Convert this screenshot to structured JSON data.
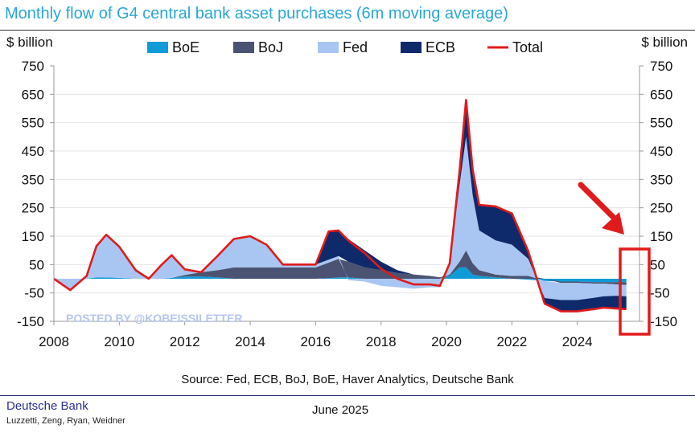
{
  "header": {
    "title": "Monthly flow of G4 central bank asset purchases (6m moving average)"
  },
  "footer": {
    "source": "Source: Fed, ECB, BoJ, BoE, Haver Analytics, Deutsche Bank",
    "brand": "Deutsche Bank",
    "authors": "Luzzetti, Zeng, Ryan, Weidner",
    "date": "June 2025"
  },
  "watermark": "POSTED BY @KOBEISSILETTER",
  "colors": {
    "BoE": "#0f9bd7",
    "BoJ": "#4a5472",
    "Fed": "#a9c6f2",
    "ECB": "#0e2a6b",
    "Total": "#e01b1b",
    "annotation": "#e01b1b"
  },
  "chart_data": {
    "type": "area",
    "title": "Monthly flow of G4 central bank asset purchases (6m moving average)",
    "ylabel_left": "$ billion",
    "ylabel_right": "$ billion",
    "ylim": [
      -150,
      750
    ],
    "yticks": [
      "750",
      "650",
      "550",
      "450",
      "350",
      "250",
      "150",
      "50",
      "-50",
      "-150"
    ],
    "xlim": [
      2008,
      2025.9
    ],
    "xticks": [
      "2008",
      "2010",
      "2012",
      "2014",
      "2016",
      "2018",
      "2020",
      "2022",
      "2024"
    ],
    "legend": [
      "BoE",
      "BoJ",
      "Fed",
      "ECB",
      "Total"
    ],
    "legend_position": "top",
    "stacked": true,
    "x": [
      2008.0,
      2008.5,
      2009.0,
      2009.3,
      2009.6,
      2010.0,
      2010.5,
      2010.9,
      2011.3,
      2011.6,
      2012.0,
      2012.5,
      2013.0,
      2013.5,
      2014.0,
      2014.5,
      2015.0,
      2015.5,
      2016.0,
      2016.4,
      2016.7,
      2017.0,
      2017.5,
      2018.0,
      2018.5,
      2019.0,
      2019.5,
      2019.8,
      2020.1,
      2020.4,
      2020.6,
      2020.8,
      2021.0,
      2021.5,
      2022.0,
      2022.5,
      2023.0,
      2023.5,
      2024.0,
      2024.5,
      2024.8,
      2025.2,
      2025.5
    ],
    "series": [
      {
        "name": "BoE",
        "values": [
          0,
          0,
          0,
          5,
          5,
          3,
          0,
          0,
          0,
          3,
          8,
          8,
          5,
          0,
          0,
          0,
          0,
          0,
          0,
          2,
          5,
          5,
          0,
          0,
          0,
          0,
          0,
          0,
          10,
          40,
          40,
          15,
          10,
          5,
          0,
          -3,
          -8,
          -10,
          -10,
          -12,
          -12,
          -12,
          -12
        ]
      },
      {
        "name": "BoJ",
        "values": [
          0,
          0,
          0,
          0,
          0,
          0,
          0,
          0,
          0,
          0,
          5,
          15,
          25,
          40,
          40,
          40,
          40,
          40,
          40,
          55,
          65,
          55,
          40,
          30,
          20,
          15,
          10,
          5,
          5,
          20,
          60,
          40,
          20,
          10,
          10,
          10,
          0,
          -5,
          -5,
          -5,
          -5,
          -8,
          -10
        ]
      },
      {
        "name": "Fed",
        "values": [
          0,
          -40,
          10,
          110,
          150,
          110,
          30,
          0,
          50,
          80,
          20,
          0,
          50,
          100,
          110,
          80,
          10,
          10,
          10,
          10,
          10,
          -5,
          -10,
          -25,
          -30,
          -35,
          -30,
          -30,
          40,
          270,
          400,
          240,
          140,
          120,
          110,
          60,
          -60,
          -60,
          -60,
          -50,
          -45,
          -40,
          -40
        ]
      },
      {
        "name": "ECB",
        "values": [
          0,
          0,
          0,
          0,
          0,
          0,
          0,
          0,
          0,
          0,
          0,
          0,
          0,
          0,
          0,
          0,
          0,
          0,
          0,
          100,
          90,
          80,
          60,
          30,
          10,
          0,
          0,
          0,
          0,
          50,
          130,
          90,
          90,
          120,
          110,
          30,
          -20,
          -40,
          -40,
          -40,
          -40,
          -45,
          -45
        ]
      },
      {
        "name": "Total",
        "values": [
          0,
          -40,
          10,
          115,
          155,
          113,
          30,
          0,
          50,
          83,
          33,
          23,
          80,
          140,
          150,
          120,
          50,
          50,
          50,
          167,
          170,
          135,
          90,
          35,
          0,
          -20,
          -20,
          -25,
          55,
          380,
          630,
          385,
          260,
          255,
          230,
          97,
          -88,
          -115,
          -115,
          -107,
          -102,
          -105,
          -107
        ]
      }
    ]
  }
}
